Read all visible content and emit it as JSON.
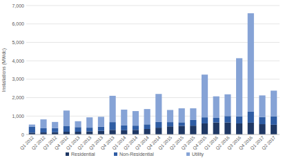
{
  "chart_data": {
    "type": "bar",
    "stacked": true,
    "grid": true,
    "legend": "bottom",
    "y_label": "Installations (MWdc)",
    "categories": [
      "Q1 2012",
      "Q2 2012",
      "Q3 2012",
      "Q4 2012",
      "Q1 2013",
      "Q2 2013",
      "Q3 2013",
      "Q4 2013",
      "Q1 2014",
      "Q2 2014",
      "Q3 2014",
      "Q4 2014",
      "Q1 2015",
      "Q2 2015",
      "Q3 2015",
      "Q4 2015",
      "Q1 2016",
      "Q2 2016",
      "Q3 2016",
      "Q4 2016",
      "Q1 2017",
      "Q2 2017"
    ],
    "series": [
      {
        "name": "Residential",
        "color": "#1f3864",
        "values": [
          100,
          110,
          120,
          150,
          150,
          170,
          200,
          250,
          230,
          250,
          300,
          370,
          440,
          470,
          480,
          600,
          650,
          650,
          600,
          640,
          560,
          530
        ]
      },
      {
        "name": "Non-Residential",
        "color": "#2f5da4",
        "values": [
          330,
          230,
          230,
          300,
          250,
          200,
          220,
          420,
          260,
          230,
          250,
          320,
          230,
          190,
          310,
          330,
          250,
          350,
          380,
          600,
          390,
          450
        ]
      },
      {
        "name": "Utility",
        "color": "#86a3d6",
        "values": [
          110,
          480,
          330,
          850,
          320,
          560,
          540,
          1430,
          860,
          790,
          830,
          1510,
          660,
          760,
          630,
          2320,
          1170,
          1180,
          3160,
          5340,
          1170,
          1400
        ]
      }
    ],
    "ylim": [
      0,
      7000
    ],
    "yticks": [
      0,
      {
        "value": 1000,
        "label": "1,000"
      },
      {
        "value": 2000,
        "label": "2,000"
      },
      {
        "value": 3000,
        "label": "3,000"
      },
      {
        "value": 4000,
        "label": "4,000"
      },
      {
        "value": 5000,
        "label": "5,000"
      },
      {
        "value": 6000,
        "label": "6,000"
      },
      {
        "value": 7000,
        "label": "7,000"
      }
    ]
  }
}
